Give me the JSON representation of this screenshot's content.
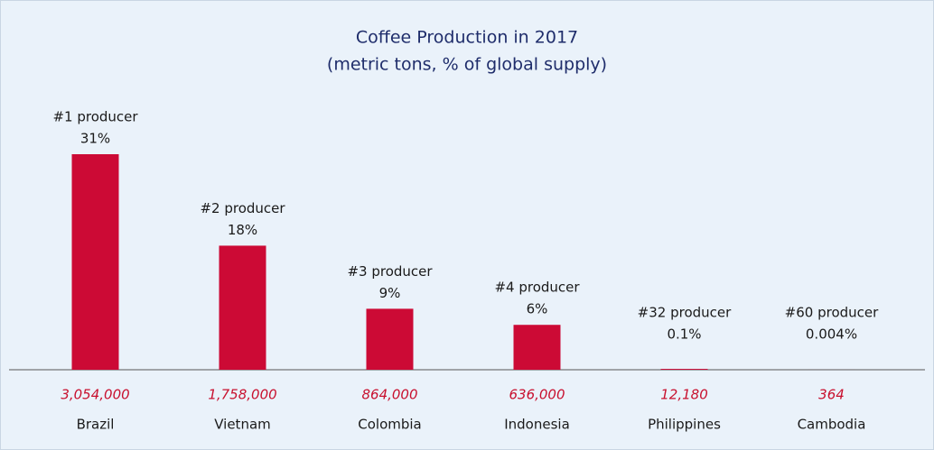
{
  "chart_data": {
    "type": "bar",
    "title": "Coffee Production in 2017",
    "subtitle": "(metric tons, % of global supply)",
    "categories": [
      "Brazil",
      "Vietnam",
      "Colombia",
      "Indonesia",
      "Philippines",
      "Cambodia"
    ],
    "values": [
      3054000,
      1758000,
      864000,
      636000,
      12180,
      364
    ],
    "value_labels": [
      "3,054,000",
      "1,758,000",
      "864,000",
      "636,000",
      "12,180",
      "364"
    ],
    "annotations": [
      {
        "rank": "#1 producer",
        "share": "31%"
      },
      {
        "rank": "#2 producer",
        "share": "18%"
      },
      {
        "rank": "#3 producer",
        "share": "9%"
      },
      {
        "rank": "#4 producer",
        "share": "6%"
      },
      {
        "rank": "#32 producer",
        "share": "0.1%"
      },
      {
        "rank": "#60 producer",
        "share": "0.004%"
      }
    ],
    "color": "#cc0a35"
  }
}
